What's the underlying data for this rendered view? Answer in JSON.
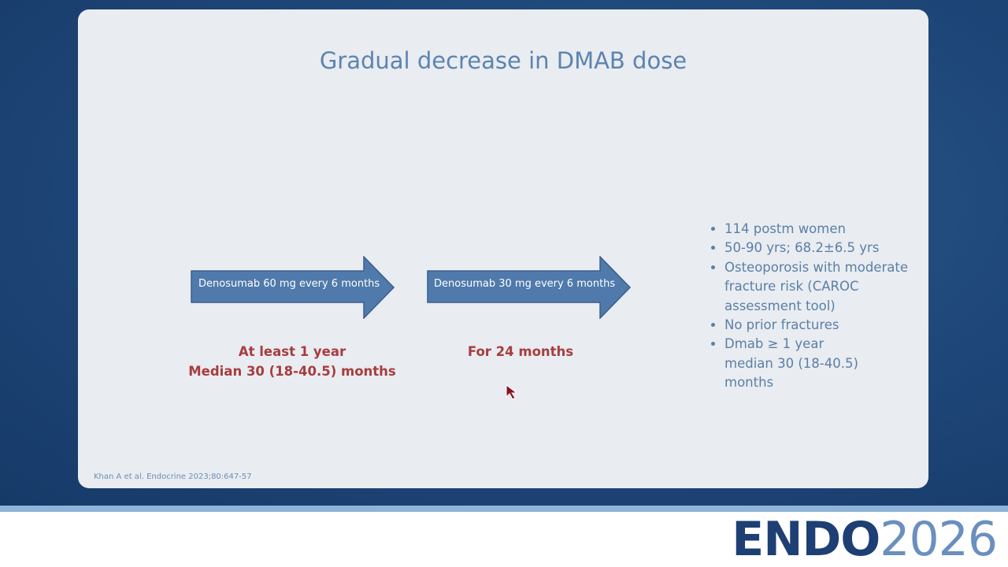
{
  "slide": {
    "title": "Gradual decrease in DMAB dose",
    "phases": [
      {
        "arrow": "Denosumab 60 mg every 6 months",
        "duration": [
          "At least 1 year",
          "Median 30 (18-40.5) months"
        ]
      },
      {
        "arrow": "Denosumab 30 mg every 6 months",
        "duration": [
          "For 24 months"
        ]
      }
    ],
    "bullets": [
      "114 postm women",
      "50-90 yrs; 68.2±6.5 yrs",
      "Osteoporosis with moderate fracture risk (CAROC assessment tool)",
      "No prior fractures",
      "Dmab ≥ 1 year median 30 (18-40.5) months"
    ],
    "citation": "Khan A et al. Endocrine 2023;80:647-57"
  },
  "footer": {
    "brand": "ENDO",
    "year": "2026"
  }
}
